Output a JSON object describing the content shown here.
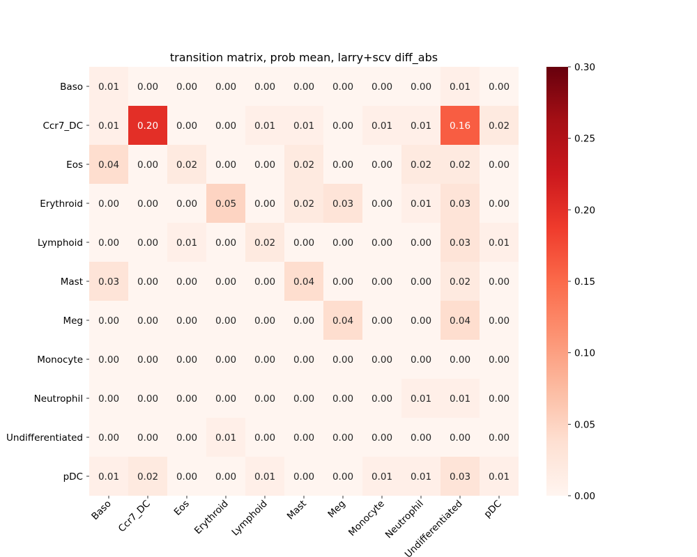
{
  "chart_data": {
    "type": "heatmap",
    "title": "transition matrix, prob mean, larry+scv diff_abs",
    "xlabel": "",
    "ylabel": "",
    "row_labels": [
      "Baso",
      "Ccr7_DC",
      "Eos",
      "Erythroid",
      "Lymphoid",
      "Mast",
      "Meg",
      "Monocyte",
      "Neutrophil",
      "Undifferentiated",
      "pDC"
    ],
    "col_labels": [
      "Baso",
      "Ccr7_DC",
      "Eos",
      "Erythroid",
      "Lymphoid",
      "Mast",
      "Meg",
      "Monocyte",
      "Neutrophil",
      "Undifferentiated",
      "pDC"
    ],
    "values": [
      [
        0.01,
        0.0,
        0.0,
        0.0,
        0.0,
        0.0,
        0.0,
        0.0,
        0.0,
        0.01,
        0.0
      ],
      [
        0.01,
        0.2,
        0.0,
        0.0,
        0.01,
        0.01,
        0.0,
        0.01,
        0.01,
        0.16,
        0.02
      ],
      [
        0.04,
        0.0,
        0.02,
        0.0,
        0.0,
        0.02,
        0.0,
        0.0,
        0.02,
        0.02,
        0.0
      ],
      [
        0.0,
        0.0,
        0.0,
        0.05,
        0.0,
        0.02,
        0.03,
        0.0,
        0.01,
        0.03,
        0.0
      ],
      [
        0.0,
        0.0,
        0.01,
        0.0,
        0.02,
        0.0,
        0.0,
        0.0,
        0.0,
        0.03,
        0.01
      ],
      [
        0.03,
        0.0,
        0.0,
        0.0,
        0.0,
        0.04,
        0.0,
        0.0,
        0.0,
        0.02,
        0.0
      ],
      [
        0.0,
        0.0,
        0.0,
        0.0,
        0.0,
        0.0,
        0.04,
        0.0,
        0.0,
        0.04,
        0.0
      ],
      [
        0.0,
        0.0,
        0.0,
        0.0,
        0.0,
        0.0,
        0.0,
        0.0,
        0.0,
        0.0,
        0.0
      ],
      [
        0.0,
        0.0,
        0.0,
        0.0,
        0.0,
        0.0,
        0.0,
        0.0,
        0.01,
        0.01,
        0.0
      ],
      [
        0.0,
        0.0,
        0.0,
        0.01,
        0.0,
        0.0,
        0.0,
        0.0,
        0.0,
        0.0,
        0.0
      ],
      [
        0.01,
        0.02,
        0.0,
        0.0,
        0.01,
        0.0,
        0.0,
        0.01,
        0.01,
        0.03,
        0.01
      ]
    ],
    "value_format": "0.00",
    "colormap": "Reds",
    "colorbar": {
      "min": 0.0,
      "max": 0.3,
      "ticks": [
        "0.00",
        "0.05",
        "0.10",
        "0.15",
        "0.20",
        "0.25",
        "0.30"
      ]
    },
    "text_colors": {
      "dark": "#262626",
      "light": "#ffffff"
    }
  }
}
